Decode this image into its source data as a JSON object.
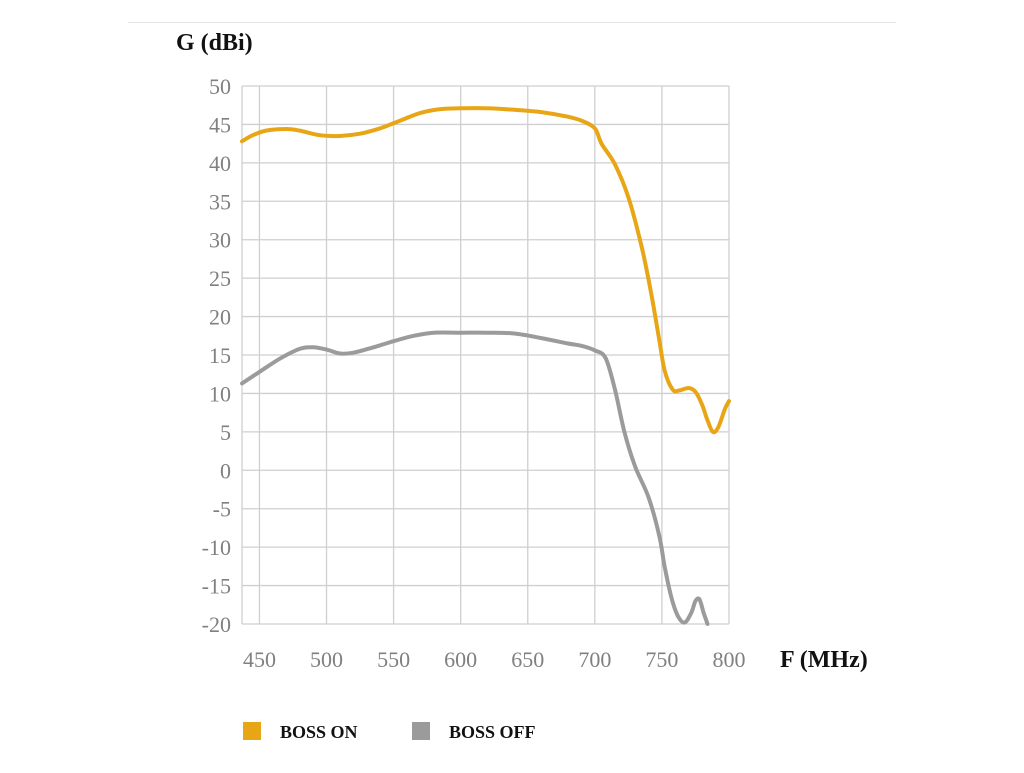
{
  "chart_data": {
    "type": "line",
    "ylabel": "G (dBi)",
    "xlabel": "F (MHz)",
    "xlim": [
      437,
      800
    ],
    "ylim": [
      -20,
      50
    ],
    "x_ticks": [
      450,
      500,
      550,
      600,
      650,
      700,
      750,
      800
    ],
    "y_ticks": [
      50,
      45,
      40,
      35,
      30,
      25,
      20,
      15,
      10,
      5,
      0,
      -5,
      -10,
      -15,
      -20
    ],
    "grid": true,
    "legend_position": "bottom",
    "series": [
      {
        "name": "BOSS ON",
        "color": "#E8A617",
        "x": [
          437,
          445,
          455,
          470,
          480,
          495,
          510,
          525,
          540,
          555,
          570,
          585,
          600,
          620,
          640,
          660,
          680,
          690,
          700,
          705,
          715,
          725,
          735,
          742,
          748,
          752,
          758,
          763,
          770,
          775,
          780,
          784,
          788,
          792,
          797,
          800
        ],
        "y": [
          42.8,
          43.6,
          44.2,
          44.4,
          44.2,
          43.6,
          43.5,
          43.8,
          44.5,
          45.5,
          46.5,
          47.0,
          47.1,
          47.1,
          46.9,
          46.6,
          46.0,
          45.5,
          44.5,
          42.5,
          39.8,
          35.5,
          29.0,
          23.0,
          17.0,
          13.0,
          10.5,
          10.4,
          10.7,
          10.2,
          8.5,
          6.5,
          5.0,
          5.6,
          8.0,
          9.0
        ]
      },
      {
        "name": "BOSS OFF",
        "color": "#9B9B9B",
        "x": [
          437,
          450,
          465,
          480,
          490,
          500,
          510,
          520,
          535,
          550,
          565,
          580,
          600,
          620,
          640,
          660,
          680,
          690,
          700,
          708,
          715,
          722,
          730,
          740,
          748,
          752,
          757,
          762,
          767,
          772,
          775,
          778,
          781,
          784
        ],
        "y": [
          11.3,
          12.8,
          14.5,
          15.8,
          16.0,
          15.7,
          15.2,
          15.3,
          16.0,
          16.8,
          17.5,
          17.9,
          17.9,
          17.9,
          17.8,
          17.2,
          16.5,
          16.2,
          15.6,
          14.6,
          10.5,
          5.0,
          0.5,
          -3.5,
          -8.5,
          -12.5,
          -16.5,
          -19.0,
          -19.8,
          -18.5,
          -17.0,
          -16.8,
          -18.5,
          -20.0
        ]
      }
    ]
  }
}
